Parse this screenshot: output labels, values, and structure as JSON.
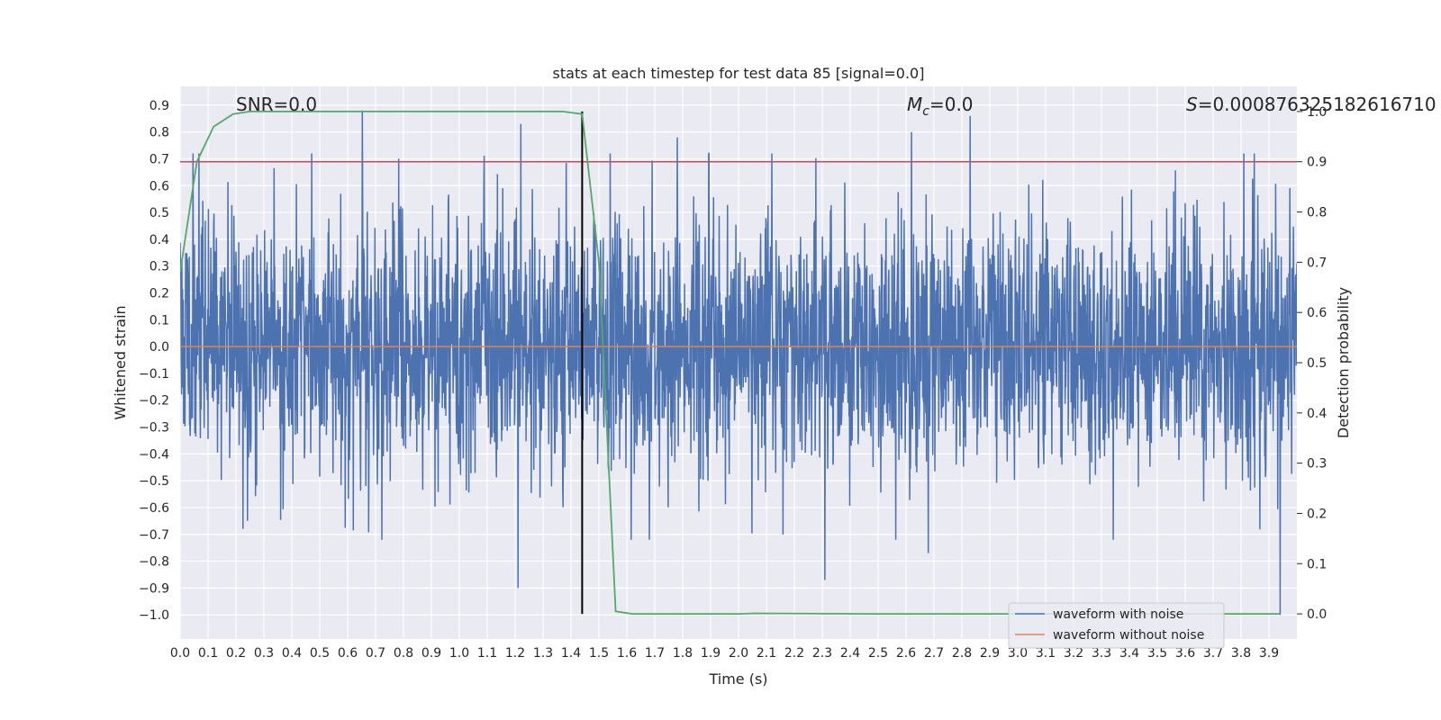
{
  "chart_data": {
    "type": "line",
    "title": "stats at each timestep for test data 85 [signal=0.0]",
    "xlabel": "Time (s)",
    "ylabel": "Whitened strain",
    "ylabel_right": "Detection probability",
    "xlim": [
      0.0,
      4.0
    ],
    "ylim": [
      -1.09,
      0.97
    ],
    "ylim_right": [
      -0.05,
      1.05
    ],
    "x_ticks": [
      "0.0",
      "0.1",
      "0.2",
      "0.3",
      "0.4",
      "0.5",
      "0.6",
      "0.7",
      "0.8",
      "0.9",
      "1.0",
      "1.1",
      "1.2",
      "1.3",
      "1.4",
      "1.5",
      "1.6",
      "1.7",
      "1.8",
      "1.9",
      "2.0",
      "2.1",
      "2.2",
      "2.3",
      "2.4",
      "2.5",
      "2.6",
      "2.7",
      "2.8",
      "2.9",
      "3.0",
      "3.1",
      "3.2",
      "3.3",
      "3.4",
      "3.5",
      "3.6",
      "3.7",
      "3.8",
      "3.9"
    ],
    "y_ticks": [
      "0.9",
      "0.8",
      "0.7",
      "0.6",
      "0.5",
      "0.4",
      "0.3",
      "0.2",
      "0.1",
      "0.0",
      "−0.1",
      "−0.2",
      "−0.3",
      "−0.4",
      "−0.5",
      "−0.6",
      "−0.7",
      "−0.8",
      "−0.9",
      "−1.0"
    ],
    "y_right_ticks": [
      "1.0",
      "0.9",
      "0.8",
      "0.7",
      "0.6",
      "0.5",
      "0.4",
      "0.3",
      "0.2",
      "0.1",
      "0.0"
    ],
    "annotations": {
      "snr": "SNR=0.0",
      "mc_symbol": "M",
      "mc_sub": "c",
      "mc_value": "=0.0",
      "s_symbol": "S",
      "s_value": "=0.000876325182616710"
    },
    "legend": {
      "placement": "lower-right",
      "entries": [
        "waveform with noise",
        "waveform without noise"
      ]
    },
    "colors": {
      "noise": "#4c72b0",
      "clean": "#dd8452",
      "probability": "#55a868",
      "threshold": "#c44e52",
      "marker": "#000000",
      "axes_bg": "#eaeaf2",
      "grid": "#ffffff"
    },
    "series": [
      {
        "name": "waveform with noise",
        "axis": "left",
        "approx_std": 0.24,
        "peaks": [
          {
            "x": 0.653,
            "y": 0.88
          },
          {
            "x": 1.22,
            "y": 0.83
          },
          {
            "x": 2.83,
            "y": 0.86
          },
          {
            "x": 1.78,
            "y": 0.78
          },
          {
            "x": 2.62,
            "y": 0.8
          },
          {
            "x": 3.81,
            "y": 0.72
          },
          {
            "x": 1.21,
            "y": -0.9
          },
          {
            "x": 2.31,
            "y": -0.87
          },
          {
            "x": 3.94,
            "y": -1.0
          },
          {
            "x": 2.68,
            "y": -0.77
          }
        ]
      },
      {
        "name": "waveform without noise",
        "axis": "left",
        "x": [
          0.0,
          4.0
        ],
        "y": [
          0.0,
          0.0
        ]
      },
      {
        "axis": "right",
        "x": [
          0.0,
          0.06,
          0.12,
          0.19,
          0.25,
          0.31,
          0.5,
          1.0,
          1.37,
          1.44,
          1.5,
          1.56,
          1.62,
          2.0,
          2.06,
          2.5,
          3.0,
          3.5,
          3.94
        ],
        "y": [
          0.68,
          0.9,
          0.97,
          0.995,
          1.0,
          1.0,
          1.0,
          1.0,
          1.0,
          0.995,
          0.7,
          0.005,
          0.0,
          0.0,
          0.001,
          0.0,
          0.0,
          0.0,
          0.0
        ]
      },
      {
        "axis": "right",
        "x": [
          0.0,
          4.0
        ],
        "y": [
          0.9,
          0.9
        ]
      },
      {
        "axis": "right",
        "x": [
          1.44,
          1.44
        ],
        "y": [
          0.0,
          1.0
        ]
      }
    ]
  }
}
